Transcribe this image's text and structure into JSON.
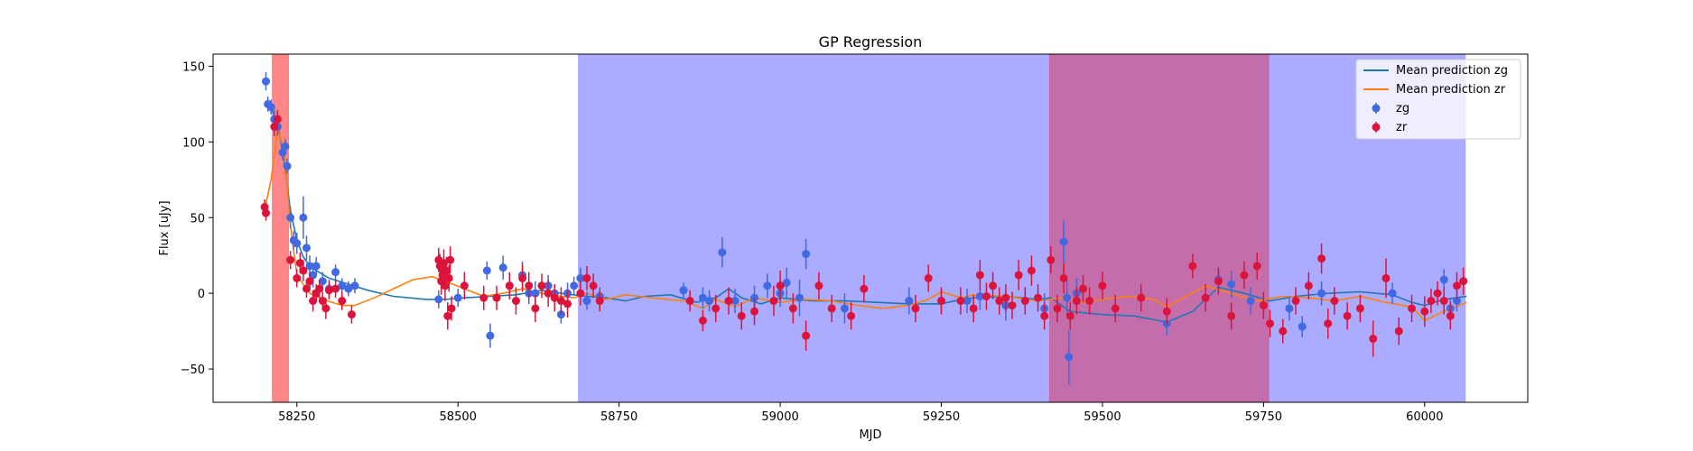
{
  "chart_data": {
    "type": "scatter",
    "title": "GP Regression",
    "xlabel": "MJD",
    "ylabel": "Flux [uJy]",
    "xlim": [
      58120,
      60160
    ],
    "ylim": [
      -72,
      158
    ],
    "xticks": [
      58250,
      58500,
      58750,
      59000,
      59250,
      59500,
      59750,
      60000
    ],
    "yticks": [
      -50,
      0,
      50,
      100,
      150
    ],
    "grid": false,
    "legend_position": "top-right",
    "shaded_regions": [
      {
        "x0": 58212,
        "x1": 58237,
        "color": "#ff8080"
      },
      {
        "x0": 58687,
        "x1": 60063,
        "color": "#a6a6ff"
      },
      {
        "x0": 59418,
        "x1": 59758,
        "color": "#c46aa6"
      }
    ],
    "lines": [
      {
        "name": "Mean prediction zg",
        "color": "#1f77b4",
        "x": [
          58200,
          58210,
          58220,
          58230,
          58240,
          58250,
          58260,
          58270,
          58280,
          58300,
          58330,
          58360,
          58400,
          58450,
          58480,
          58510,
          58550,
          58590,
          58630,
          58660,
          58700,
          58730,
          58760,
          58790,
          58830,
          58870,
          58900,
          58920,
          58940,
          58970,
          59000,
          59050,
          59100,
          59150,
          59200,
          59250,
          59270,
          59300,
          59350,
          59400,
          59420,
          59450,
          59500,
          59550,
          59600,
          59640,
          59680,
          59720,
          59760,
          59800,
          59850,
          59900,
          59950,
          59980,
          60000,
          60030,
          60065
        ],
        "y": [
          125,
          123,
          112,
          88,
          55,
          35,
          24,
          18,
          15,
          10,
          6,
          2,
          -2,
          -4,
          -4,
          -3,
          -2,
          -1,
          2,
          0,
          -2,
          -3,
          -5,
          -2,
          -1,
          -6,
          -3,
          3,
          -3,
          -7,
          -3,
          -5,
          -5,
          -6,
          -7,
          -7,
          -5,
          -3,
          -2,
          -4,
          -3,
          -12,
          -14,
          -15,
          -19,
          -12,
          4,
          0,
          -5,
          -2,
          0,
          1,
          -1,
          -6,
          -8,
          -4,
          -2
        ]
      },
      {
        "name": "Mean prediction zr",
        "color": "#ff7f0e",
        "x": [
          58200,
          58210,
          58220,
          58230,
          58240,
          58250,
          58260,
          58270,
          58290,
          58320,
          58340,
          58370,
          58400,
          58430,
          58460,
          58480,
          58510,
          58540,
          58570,
          58600,
          58640,
          58680,
          58700,
          58730,
          58760,
          58800,
          58850,
          58880,
          58900,
          58930,
          58960,
          59000,
          59040,
          59080,
          59120,
          59160,
          59200,
          59230,
          59250,
          59280,
          59300,
          59350,
          59400,
          59440,
          59470,
          59500,
          59540,
          59580,
          59600,
          59630,
          59660,
          59700,
          59740,
          59780,
          59820,
          59860,
          59900,
          59940,
          59980,
          60000,
          60030,
          60065
        ],
        "y": [
          55,
          75,
          108,
          95,
          45,
          12,
          6,
          0,
          -4,
          -8,
          -8,
          -3,
          3,
          9,
          11,
          8,
          3,
          -2,
          0,
          3,
          -1,
          -3,
          0,
          -4,
          -1,
          -3,
          -5,
          -10,
          -4,
          -9,
          -3,
          -6,
          -4,
          -5,
          -8,
          -10,
          -8,
          -4,
          1,
          -3,
          -1,
          -2,
          -5,
          -3,
          -6,
          -4,
          -2,
          -4,
          -9,
          -2,
          5,
          0,
          -5,
          -2,
          -3,
          -5,
          -2,
          -6,
          -9,
          -18,
          -12,
          -6
        ]
      }
    ],
    "series": [
      {
        "name": "zg",
        "color": "#4169e1",
        "x": [
          58202,
          58205,
          58210,
          58215,
          58220,
          58228,
          58232,
          58235,
          58240,
          58245,
          58250,
          58260,
          58265,
          58270,
          58275,
          58280,
          58290,
          58300,
          58310,
          58320,
          58330,
          58340,
          58470,
          58500,
          58545,
          58550,
          58570,
          58580,
          58600,
          58610,
          58620,
          58640,
          58650,
          58660,
          58670,
          58680,
          58690,
          58700,
          58720,
          58850,
          58880,
          58890,
          58910,
          58930,
          58960,
          58980,
          59000,
          59010,
          59030,
          59040,
          59100,
          59200,
          59250,
          59290,
          59310,
          59350,
          59380,
          59410,
          59440,
          59445,
          59448,
          59460,
          59600,
          59680,
          59700,
          59730,
          59790,
          59810,
          59840,
          59950,
          60030,
          60040,
          60050
        ],
        "y": [
          140,
          125,
          123,
          115,
          110,
          93,
          97,
          84,
          50,
          35,
          33,
          50,
          30,
          18,
          12,
          18,
          8,
          3,
          14,
          5,
          3,
          5,
          -4,
          -3,
          15,
          -28,
          17,
          5,
          12,
          0,
          0,
          5,
          0,
          -14,
          0,
          5,
          10,
          -5,
          -2,
          2,
          -3,
          -5,
          27,
          -5,
          -3,
          5,
          0,
          7,
          -3,
          26,
          -10,
          -5,
          -5,
          -5,
          -2,
          -8,
          -5,
          -10,
          34,
          -3,
          -42,
          0,
          -20,
          9,
          6,
          -5,
          -10,
          -22,
          0,
          0,
          9,
          -10,
          -5
        ],
        "yerr": [
          6,
          5,
          5,
          6,
          6,
          5,
          5,
          5,
          7,
          6,
          7,
          14,
          8,
          7,
          8,
          6,
          6,
          6,
          5,
          5,
          5,
          5,
          6,
          6,
          6,
          8,
          8,
          8,
          9,
          7,
          8,
          7,
          6,
          6,
          7,
          6,
          7,
          6,
          6,
          5,
          7,
          7,
          10,
          8,
          8,
          8,
          9,
          10,
          12,
          10,
          10,
          9,
          8,
          8,
          9,
          10,
          9,
          10,
          14,
          12,
          18,
          10,
          8,
          8,
          9,
          9,
          8,
          7,
          8,
          7,
          7,
          7,
          7
        ]
      },
      {
        "name": "zr",
        "color": "#dc143c",
        "x": [
          58200,
          58202,
          58215,
          58220,
          58240,
          58250,
          58255,
          58260,
          58265,
          58270,
          58275,
          58280,
          58285,
          58290,
          58295,
          58300,
          58310,
          58320,
          58335,
          58470,
          58472,
          58474,
          58476,
          58478,
          58480,
          58482,
          58484,
          58486,
          58488,
          58490,
          58510,
          58540,
          58560,
          58580,
          58590,
          58600,
          58610,
          58620,
          58630,
          58640,
          58650,
          58660,
          58670,
          58690,
          58700,
          58710,
          58720,
          58860,
          58880,
          58900,
          58920,
          58940,
          58960,
          58990,
          59000,
          59020,
          59040,
          59060,
          59080,
          59110,
          59130,
          59210,
          59230,
          59250,
          59280,
          59300,
          59310,
          59320,
          59330,
          59340,
          59350,
          59360,
          59370,
          59380,
          59390,
          59400,
          59410,
          59420,
          59430,
          59440,
          59450,
          59460,
          59470,
          59480,
          59500,
          59520,
          59560,
          59600,
          59640,
          59660,
          59680,
          59700,
          59720,
          59740,
          59750,
          59760,
          59780,
          59800,
          59820,
          59840,
          59850,
          59860,
          59880,
          59900,
          59920,
          59940,
          59960,
          59980,
          60000,
          60010,
          60020,
          60030,
          60040,
          60050,
          60060
        ],
        "y": [
          57,
          53,
          110,
          115,
          22,
          10,
          20,
          15,
          3,
          8,
          -5,
          0,
          3,
          -5,
          -10,
          2,
          3,
          -5,
          -14,
          22,
          18,
          8,
          12,
          20,
          5,
          15,
          -15,
          10,
          22,
          -10,
          5,
          -3,
          -3,
          5,
          -5,
          10,
          5,
          -10,
          5,
          0,
          -3,
          -5,
          -7,
          0,
          10,
          5,
          -5,
          -5,
          -18,
          -10,
          -5,
          -15,
          -12,
          -5,
          5,
          -10,
          -28,
          5,
          -10,
          -15,
          3,
          -10,
          10,
          -5,
          -5,
          -10,
          12,
          -2,
          5,
          -5,
          -3,
          -8,
          12,
          -5,
          15,
          -3,
          -15,
          22,
          -10,
          10,
          -15,
          -5,
          3,
          -5,
          5,
          -10,
          -3,
          -12,
          18,
          -3,
          8,
          -15,
          12,
          18,
          -8,
          -20,
          -25,
          -5,
          5,
          23,
          -20,
          -5,
          -15,
          -10,
          -30,
          10,
          -25,
          -10,
          -12,
          -5,
          0,
          -5,
          -15,
          5,
          8
        ],
        "yerr": [
          5,
          5,
          6,
          6,
          6,
          6,
          7,
          7,
          6,
          6,
          7,
          6,
          6,
          6,
          7,
          6,
          6,
          6,
          6,
          8,
          8,
          9,
          9,
          9,
          10,
          9,
          9,
          9,
          9,
          8,
          9,
          8,
          8,
          9,
          9,
          9,
          9,
          9,
          8,
          9,
          9,
          9,
          9,
          8,
          8,
          8,
          7,
          7,
          7,
          9,
          9,
          9,
          9,
          10,
          10,
          10,
          10,
          9,
          9,
          9,
          9,
          9,
          9,
          9,
          9,
          9,
          10,
          9,
          9,
          9,
          9,
          9,
          10,
          9,
          10,
          9,
          9,
          9,
          9,
          10,
          9,
          9,
          9,
          9,
          9,
          9,
          9,
          9,
          8,
          9,
          9,
          9,
          9,
          9,
          9,
          9,
          8,
          9,
          9,
          10,
          10,
          9,
          9,
          9,
          12,
          13,
          9,
          9,
          10,
          8,
          8,
          9,
          9,
          9,
          9
        ]
      }
    ]
  }
}
